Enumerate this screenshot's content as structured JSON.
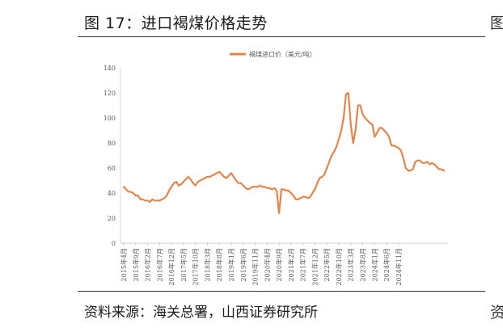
{
  "figure": {
    "title": "图 17：进口褐煤价格走势",
    "source": "资料来源：海关总署，山西证券研究所",
    "edge_glyph_top": "图",
    "edge_glyph_bottom": "资"
  },
  "chart_data": {
    "type": "line",
    "title": "",
    "xlabel": "",
    "ylabel": "",
    "ylim": [
      0,
      140
    ],
    "yticks": [
      0,
      20,
      40,
      60,
      80,
      100,
      120,
      140
    ],
    "grid": false,
    "legend_position": "top-center",
    "color": "#E3864B",
    "x_tick_labels": [
      "2015年4月",
      "2015年9月",
      "2016年2月",
      "2016年7月",
      "2016年12月",
      "2017年5月",
      "2017年10月",
      "2018年3月",
      "2018年8月",
      "2019年1月",
      "2019年6月",
      "2019年11月",
      "2020年4月",
      "2020年9月",
      "2021年2月",
      "2021年7月",
      "2021年12月",
      "2022年5月",
      "2022年10月",
      "2023年3月",
      "2023年8月",
      "2024年1月",
      "2024年6月",
      "2024年11月"
    ],
    "series": [
      {
        "name": "褐煤进口价（美元/吨）",
        "values": [
          45,
          43,
          41,
          41,
          40,
          38,
          38,
          35,
          35,
          34,
          34,
          33,
          35,
          34,
          34,
          34,
          35,
          36,
          38,
          42,
          45,
          48,
          49,
          46,
          47,
          49,
          51,
          53,
          51,
          48,
          46,
          49,
          50,
          51,
          52,
          53,
          53,
          54,
          55,
          56,
          57,
          55,
          53,
          52,
          54,
          56,
          53,
          50,
          48,
          48,
          46,
          44,
          43,
          44,
          45,
          45,
          45,
          46,
          45,
          45,
          44,
          44,
          43,
          44,
          42,
          24,
          43,
          43,
          42,
          42,
          40,
          38,
          35,
          35,
          36,
          37,
          37,
          36,
          37,
          40,
          43,
          48,
          52,
          53,
          55,
          60,
          65,
          70,
          73,
          77,
          83,
          90,
          100,
          119,
          120,
          95,
          80,
          90,
          110,
          110,
          103,
          100,
          98,
          96,
          95,
          85,
          88,
          92,
          92,
          90,
          88,
          85,
          78,
          78,
          77,
          76,
          74,
          68,
          60,
          58,
          58,
          59,
          65,
          66,
          66,
          64,
          64,
          65,
          63,
          64,
          63,
          61,
          59,
          59,
          58
        ]
      }
    ]
  }
}
